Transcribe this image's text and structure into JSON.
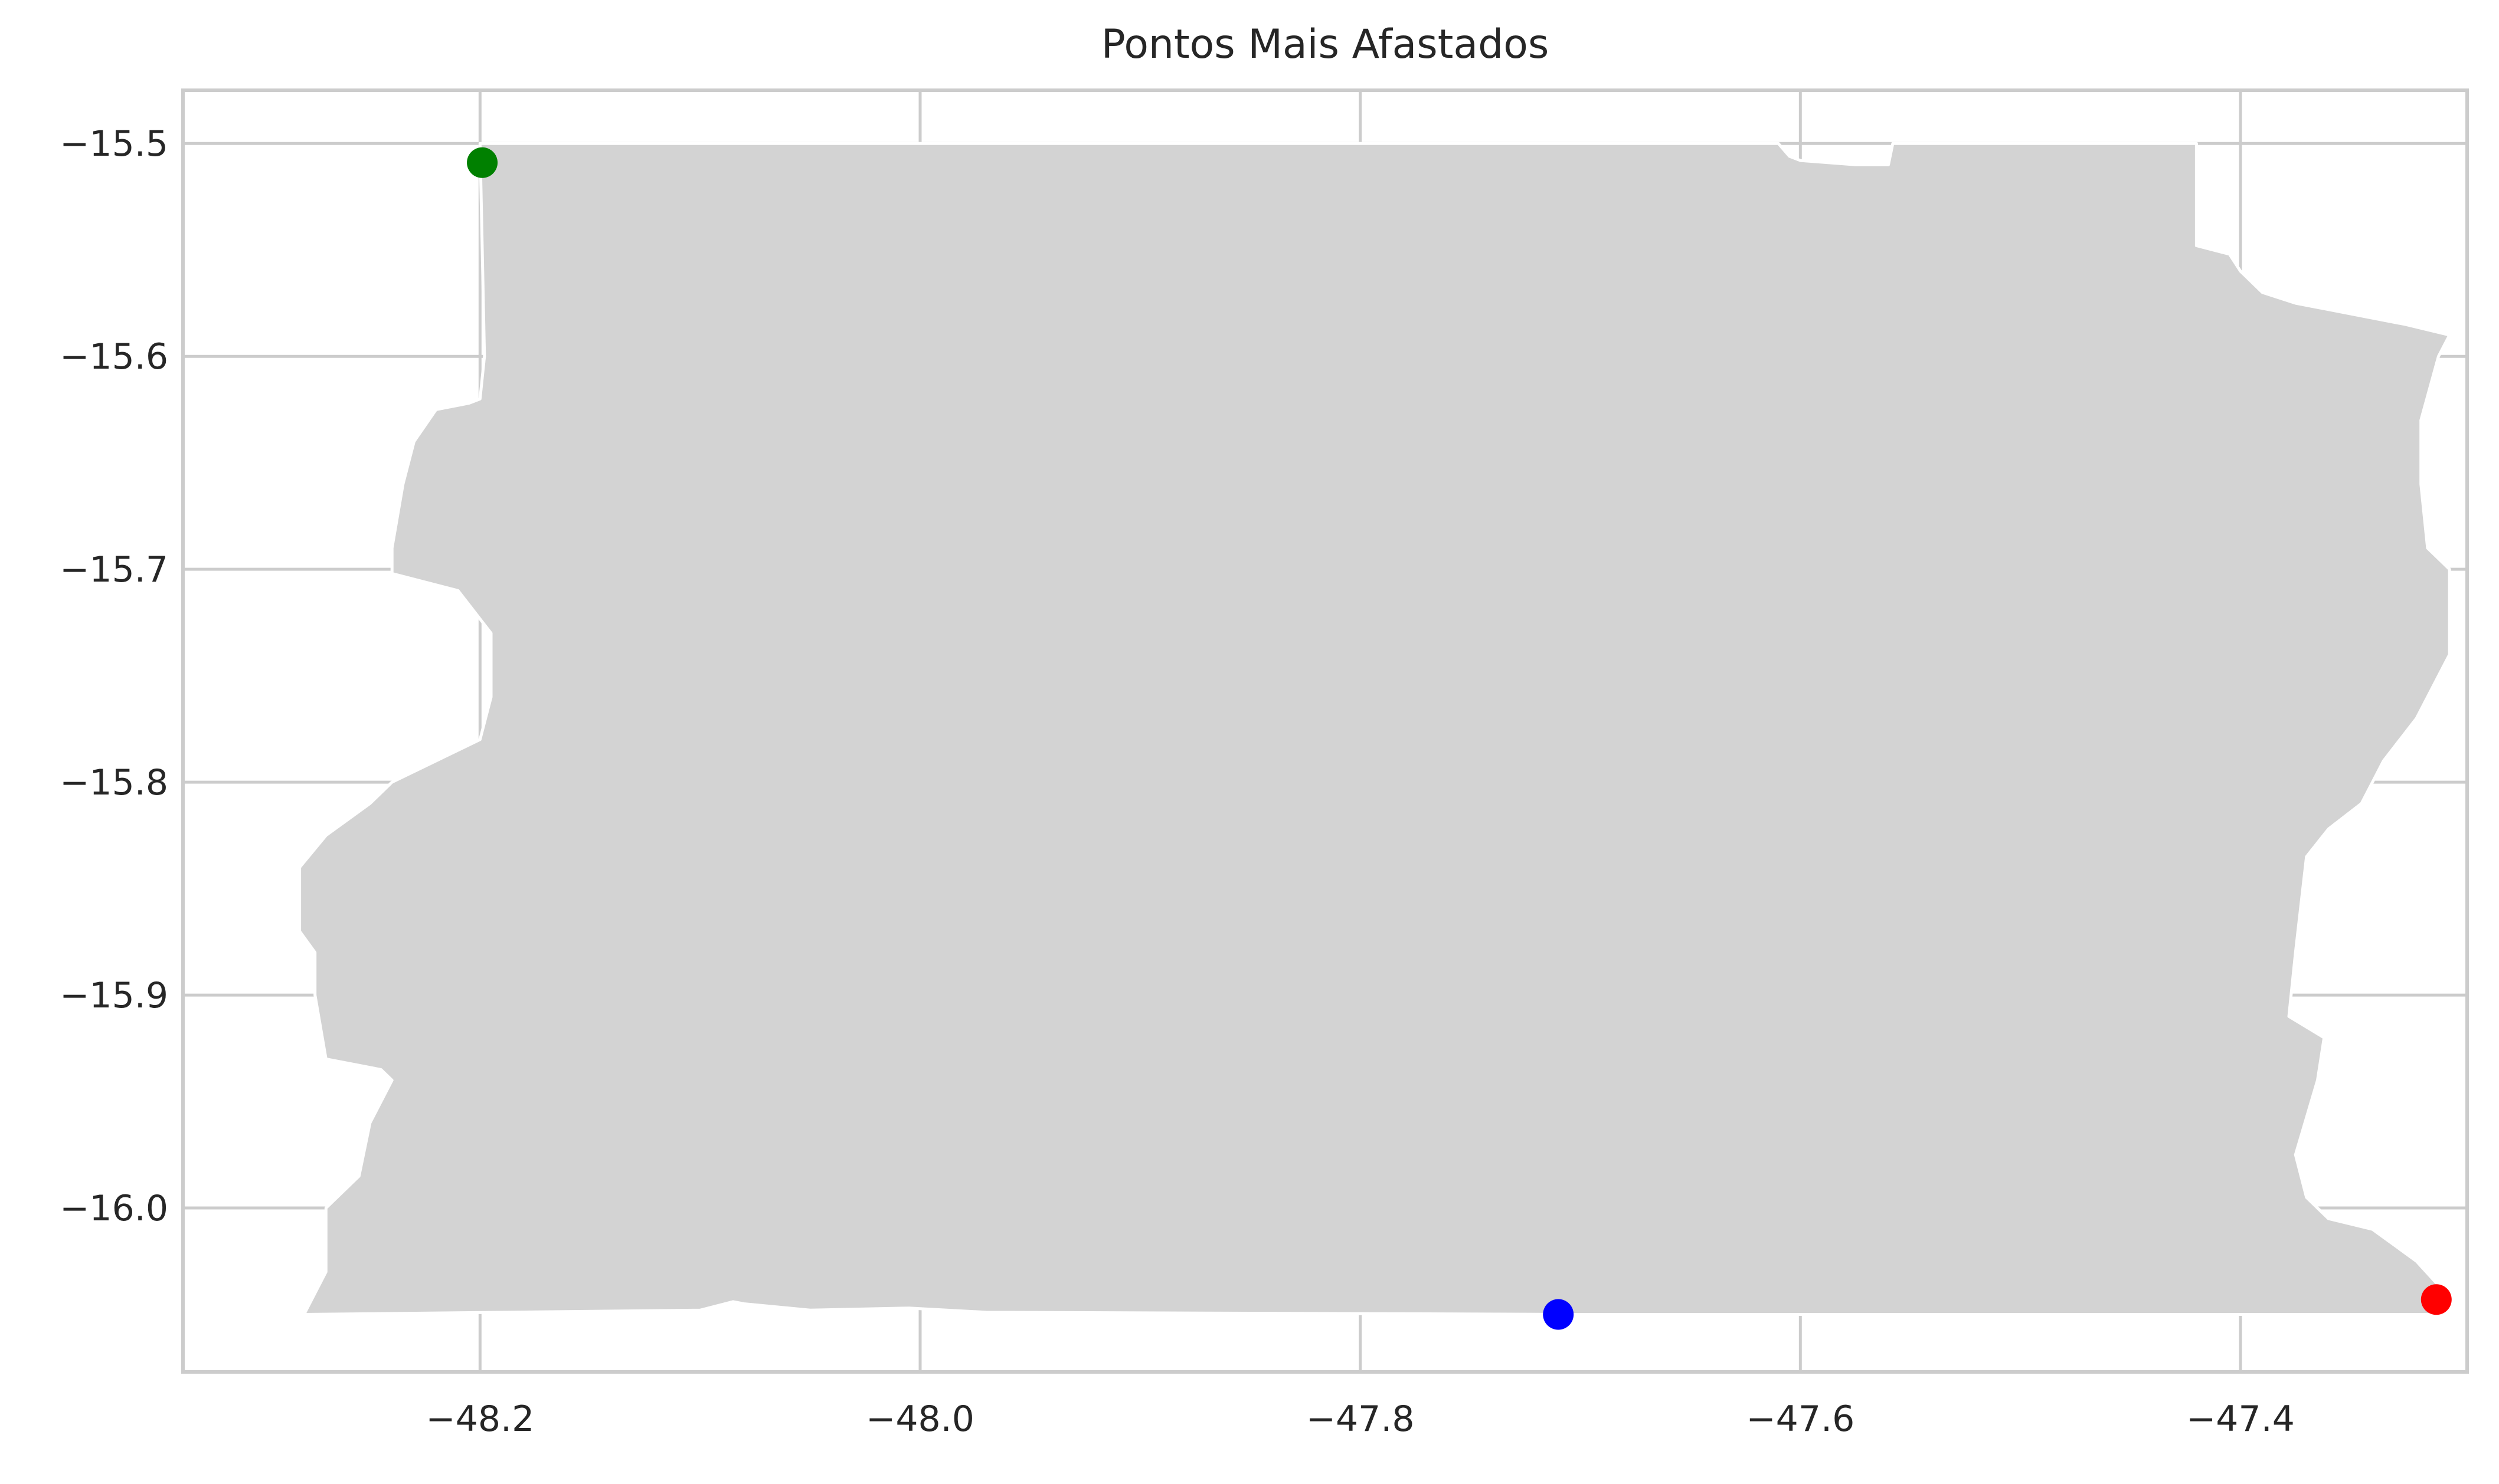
{
  "chart_data": {
    "type": "scatter",
    "title": "Pontos Mais Afastados",
    "xlabel": "",
    "ylabel": "",
    "xlim": [
      -48.335,
      -47.297
    ],
    "ylim": [
      -16.077,
      -15.475
    ],
    "xticks": [
      -48.2,
      -48.0,
      -47.8,
      -47.6,
      -47.4
    ],
    "xtick_labels": [
      "−48.2",
      "−48.0",
      "−47.8",
      "−47.6",
      "−47.4"
    ],
    "yticks": [
      -15.5,
      -15.6,
      -15.7,
      -15.8,
      -15.9,
      -16.0
    ],
    "ytick_labels": [
      "−15.5",
      "−15.6",
      "−15.7",
      "−15.8",
      "−15.9",
      "−16.0"
    ],
    "grid": true,
    "background_shape": {
      "fill": "#d3d3d3",
      "edge": "#ffffff",
      "outline": [
        [
          -48.2,
          -15.5
        ],
        [
          -47.61,
          -15.5
        ],
        [
          -47.605,
          -15.506
        ],
        [
          -47.6,
          -15.508
        ],
        [
          -47.575,
          -15.51
        ],
        [
          -47.56,
          -15.51
        ],
        [
          -47.558,
          -15.5
        ],
        [
          -47.42,
          -15.5
        ],
        [
          -47.42,
          -15.548
        ],
        [
          -47.405,
          -15.552
        ],
        [
          -47.4,
          -15.56
        ],
        [
          -47.39,
          -15.57
        ],
        [
          -47.375,
          -15.575
        ],
        [
          -47.35,
          -15.58
        ],
        [
          -47.325,
          -15.585
        ],
        [
          -47.305,
          -15.59
        ],
        [
          -47.31,
          -15.6
        ],
        [
          -47.318,
          -15.63
        ],
        [
          -47.318,
          -15.66
        ],
        [
          -47.315,
          -15.69
        ],
        [
          -47.305,
          -15.7
        ],
        [
          -47.305,
          -15.74
        ],
        [
          -47.32,
          -15.77
        ],
        [
          -47.335,
          -15.79
        ],
        [
          -47.345,
          -15.81
        ],
        [
          -47.36,
          -15.822
        ],
        [
          -47.37,
          -15.835
        ],
        [
          -47.375,
          -15.88
        ],
        [
          -47.378,
          -15.91
        ],
        [
          -47.362,
          -15.92
        ],
        [
          -47.365,
          -15.94
        ],
        [
          -47.375,
          -15.975
        ],
        [
          -47.37,
          -15.995
        ],
        [
          -47.36,
          -16.005
        ],
        [
          -47.34,
          -16.01
        ],
        [
          -47.32,
          -16.025
        ],
        [
          -47.305,
          -16.042
        ],
        [
          -47.31,
          -16.05
        ],
        [
          -47.7,
          -16.05
        ],
        [
          -47.97,
          -16.049
        ],
        [
          -48.005,
          -16.047
        ],
        [
          -48.05,
          -16.048
        ],
        [
          -48.08,
          -16.045
        ],
        [
          -48.085,
          -16.044
        ],
        [
          -48.1,
          -16.048
        ],
        [
          -48.28,
          -16.05
        ],
        [
          -48.27,
          -16.03
        ],
        [
          -48.27,
          -16.0
        ],
        [
          -48.255,
          -15.985
        ],
        [
          -48.25,
          -15.96
        ],
        [
          -48.24,
          -15.94
        ],
        [
          -48.245,
          -15.935
        ],
        [
          -48.27,
          -15.93
        ],
        [
          -48.275,
          -15.9
        ],
        [
          -48.275,
          -15.88
        ],
        [
          -48.282,
          -15.87
        ],
        [
          -48.282,
          -15.84
        ],
        [
          -48.27,
          -15.825
        ],
        [
          -48.25,
          -15.81
        ],
        [
          -48.24,
          -15.8
        ],
        [
          -48.22,
          -15.79
        ],
        [
          -48.2,
          -15.78
        ],
        [
          -48.195,
          -15.76
        ],
        [
          -48.195,
          -15.73
        ],
        [
          -48.21,
          -15.71
        ],
        [
          -48.24,
          -15.702
        ],
        [
          -48.24,
          -15.69
        ],
        [
          -48.235,
          -15.66
        ],
        [
          -48.23,
          -15.64
        ],
        [
          -48.22,
          -15.625
        ],
        [
          -48.205,
          -15.622
        ],
        [
          -48.2,
          -15.62
        ],
        [
          -48.198,
          -15.6
        ]
      ]
    },
    "points": [
      {
        "x": -48.199,
        "y": -15.509,
        "color": "#008000"
      },
      {
        "x": -47.71,
        "y": -16.05,
        "color": "#0000ff"
      },
      {
        "x": -47.311,
        "y": -16.043,
        "color": "#ff0000"
      }
    ]
  }
}
